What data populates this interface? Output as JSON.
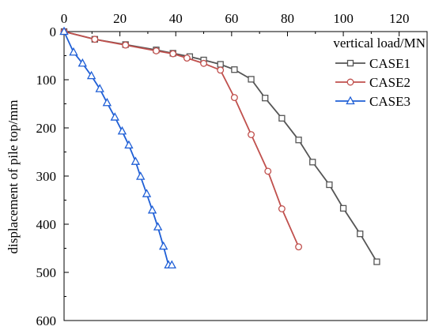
{
  "chart_data": {
    "type": "line",
    "xlabel": "vertical load/MN",
    "ylabel": "displacement of pile top/mm",
    "xlim": [
      0,
      130
    ],
    "ylim": [
      600,
      0
    ],
    "x_axis_position": "top",
    "y_inverted": true,
    "x_ticks": [
      0,
      20,
      40,
      60,
      80,
      100,
      120
    ],
    "y_ticks": [
      0,
      100,
      200,
      300,
      400,
      500,
      600
    ],
    "legend_position": "top-right",
    "series": [
      {
        "name": "CASE1",
        "color": "#555555",
        "marker": "square",
        "x": [
          0,
          11,
          22,
          33,
          39,
          45,
          50,
          56,
          61,
          67,
          72,
          78,
          84,
          89,
          95,
          100,
          106,
          112
        ],
        "y": [
          0,
          16,
          27,
          38,
          45,
          52,
          59,
          68,
          79,
          99,
          138,
          180,
          225,
          271,
          318,
          367,
          420,
          478
        ]
      },
      {
        "name": "CASE2",
        "color": "#c0504d",
        "marker": "circle",
        "x": [
          0,
          11,
          22,
          33,
          39,
          44,
          50,
          56,
          61,
          67,
          73,
          78,
          84
        ],
        "y": [
          0,
          16,
          28,
          40,
          46,
          55,
          66,
          80,
          137,
          214,
          290,
          368,
          447
        ]
      },
      {
        "name": "CASE3",
        "color": "#1f5fd6",
        "marker": "triangle",
        "x": [
          0,
          3.4,
          6.6,
          9.8,
          12.8,
          15.4,
          18.2,
          20.8,
          23.2,
          25.6,
          27.4,
          29.6,
          31.6,
          33.6,
          35.6,
          37.4,
          38.6
        ],
        "y": [
          0,
          43,
          66,
          92,
          119,
          148,
          178,
          207,
          236,
          270,
          301,
          337,
          371,
          406,
          446,
          485,
          485
        ]
      }
    ]
  }
}
